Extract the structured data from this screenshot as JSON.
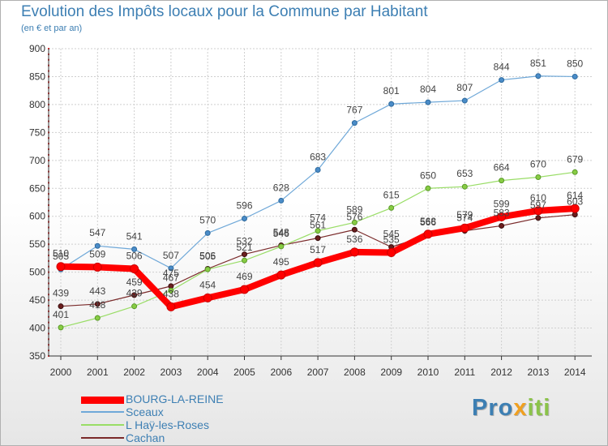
{
  "title": "Evolution des Impôts locaux pour la Commune par Habitant",
  "subtitle": "(en € et par an)",
  "logo": {
    "prefix": "Pro",
    "x": "x",
    "suffix": "iti"
  },
  "chart_data": {
    "type": "line",
    "title": "Evolution des Impôts locaux pour la Commune par Habitant",
    "ylabel": "(en € et par an)",
    "xlabel": "",
    "ylim": [
      350,
      900
    ],
    "yticks": [
      350,
      400,
      450,
      500,
      550,
      600,
      650,
      700,
      750,
      800,
      850,
      900
    ],
    "categories": [
      "2000",
      "2001",
      "2002",
      "2003",
      "2004",
      "2005",
      "2006",
      "2007",
      "2008",
      "2009",
      "2010",
      "2011",
      "2012",
      "2013",
      "2014"
    ],
    "series": [
      {
        "name": "BOURG-LA-REINE",
        "color": "#ff0000",
        "values": [
          510,
          509,
          506,
          438,
          454,
          469,
          495,
          517,
          536,
          535,
          568,
          579,
          599,
          610,
          614
        ]
      },
      {
        "name": "Sceaux",
        "color": "#6fa8d8",
        "values": [
          505,
          547,
          541,
          507,
          570,
          596,
          628,
          683,
          767,
          801,
          804,
          807,
          844,
          851,
          850
        ]
      },
      {
        "name": "L  Haÿ-les-Roses",
        "color": "#99dd66",
        "values": [
          401,
          418,
          439,
          467,
          505,
          521,
          546,
          574,
          589,
          615,
          650,
          653,
          664,
          670,
          679
        ]
      },
      {
        "name": "Cachan",
        "color": "#7a2a2a",
        "values": [
          439,
          443,
          459,
          475,
          506,
          532,
          548,
          561,
          576,
          545,
          566,
          574,
          583,
          597,
          603
        ]
      }
    ]
  }
}
